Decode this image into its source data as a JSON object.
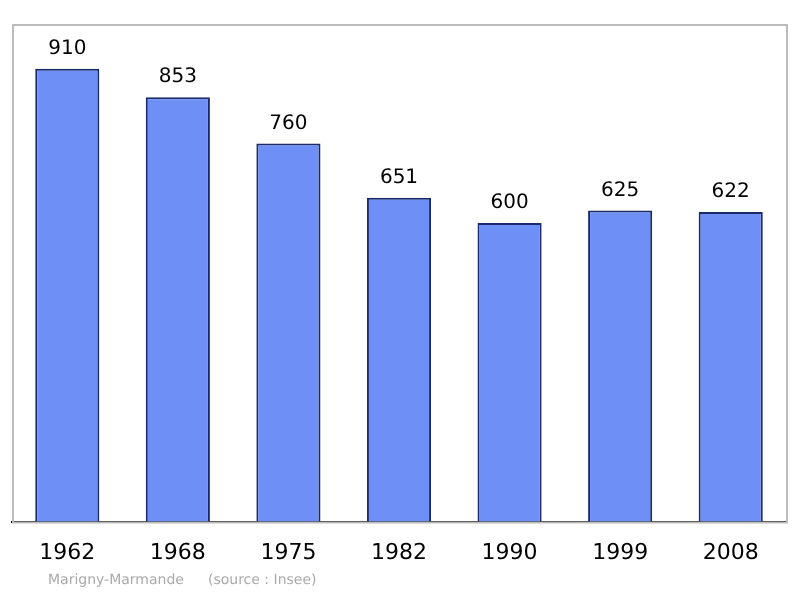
{
  "chart_data": {
    "type": "bar",
    "categories": [
      "1962",
      "1968",
      "1975",
      "1982",
      "1990",
      "1999",
      "2008"
    ],
    "values": [
      910,
      853,
      760,
      651,
      600,
      625,
      622
    ],
    "color": "#6e8ff5",
    "data_labels": true,
    "grid": false,
    "legend": false,
    "annotations": [
      "Marigny-Marmande",
      "(source : Insee)"
    ]
  }
}
